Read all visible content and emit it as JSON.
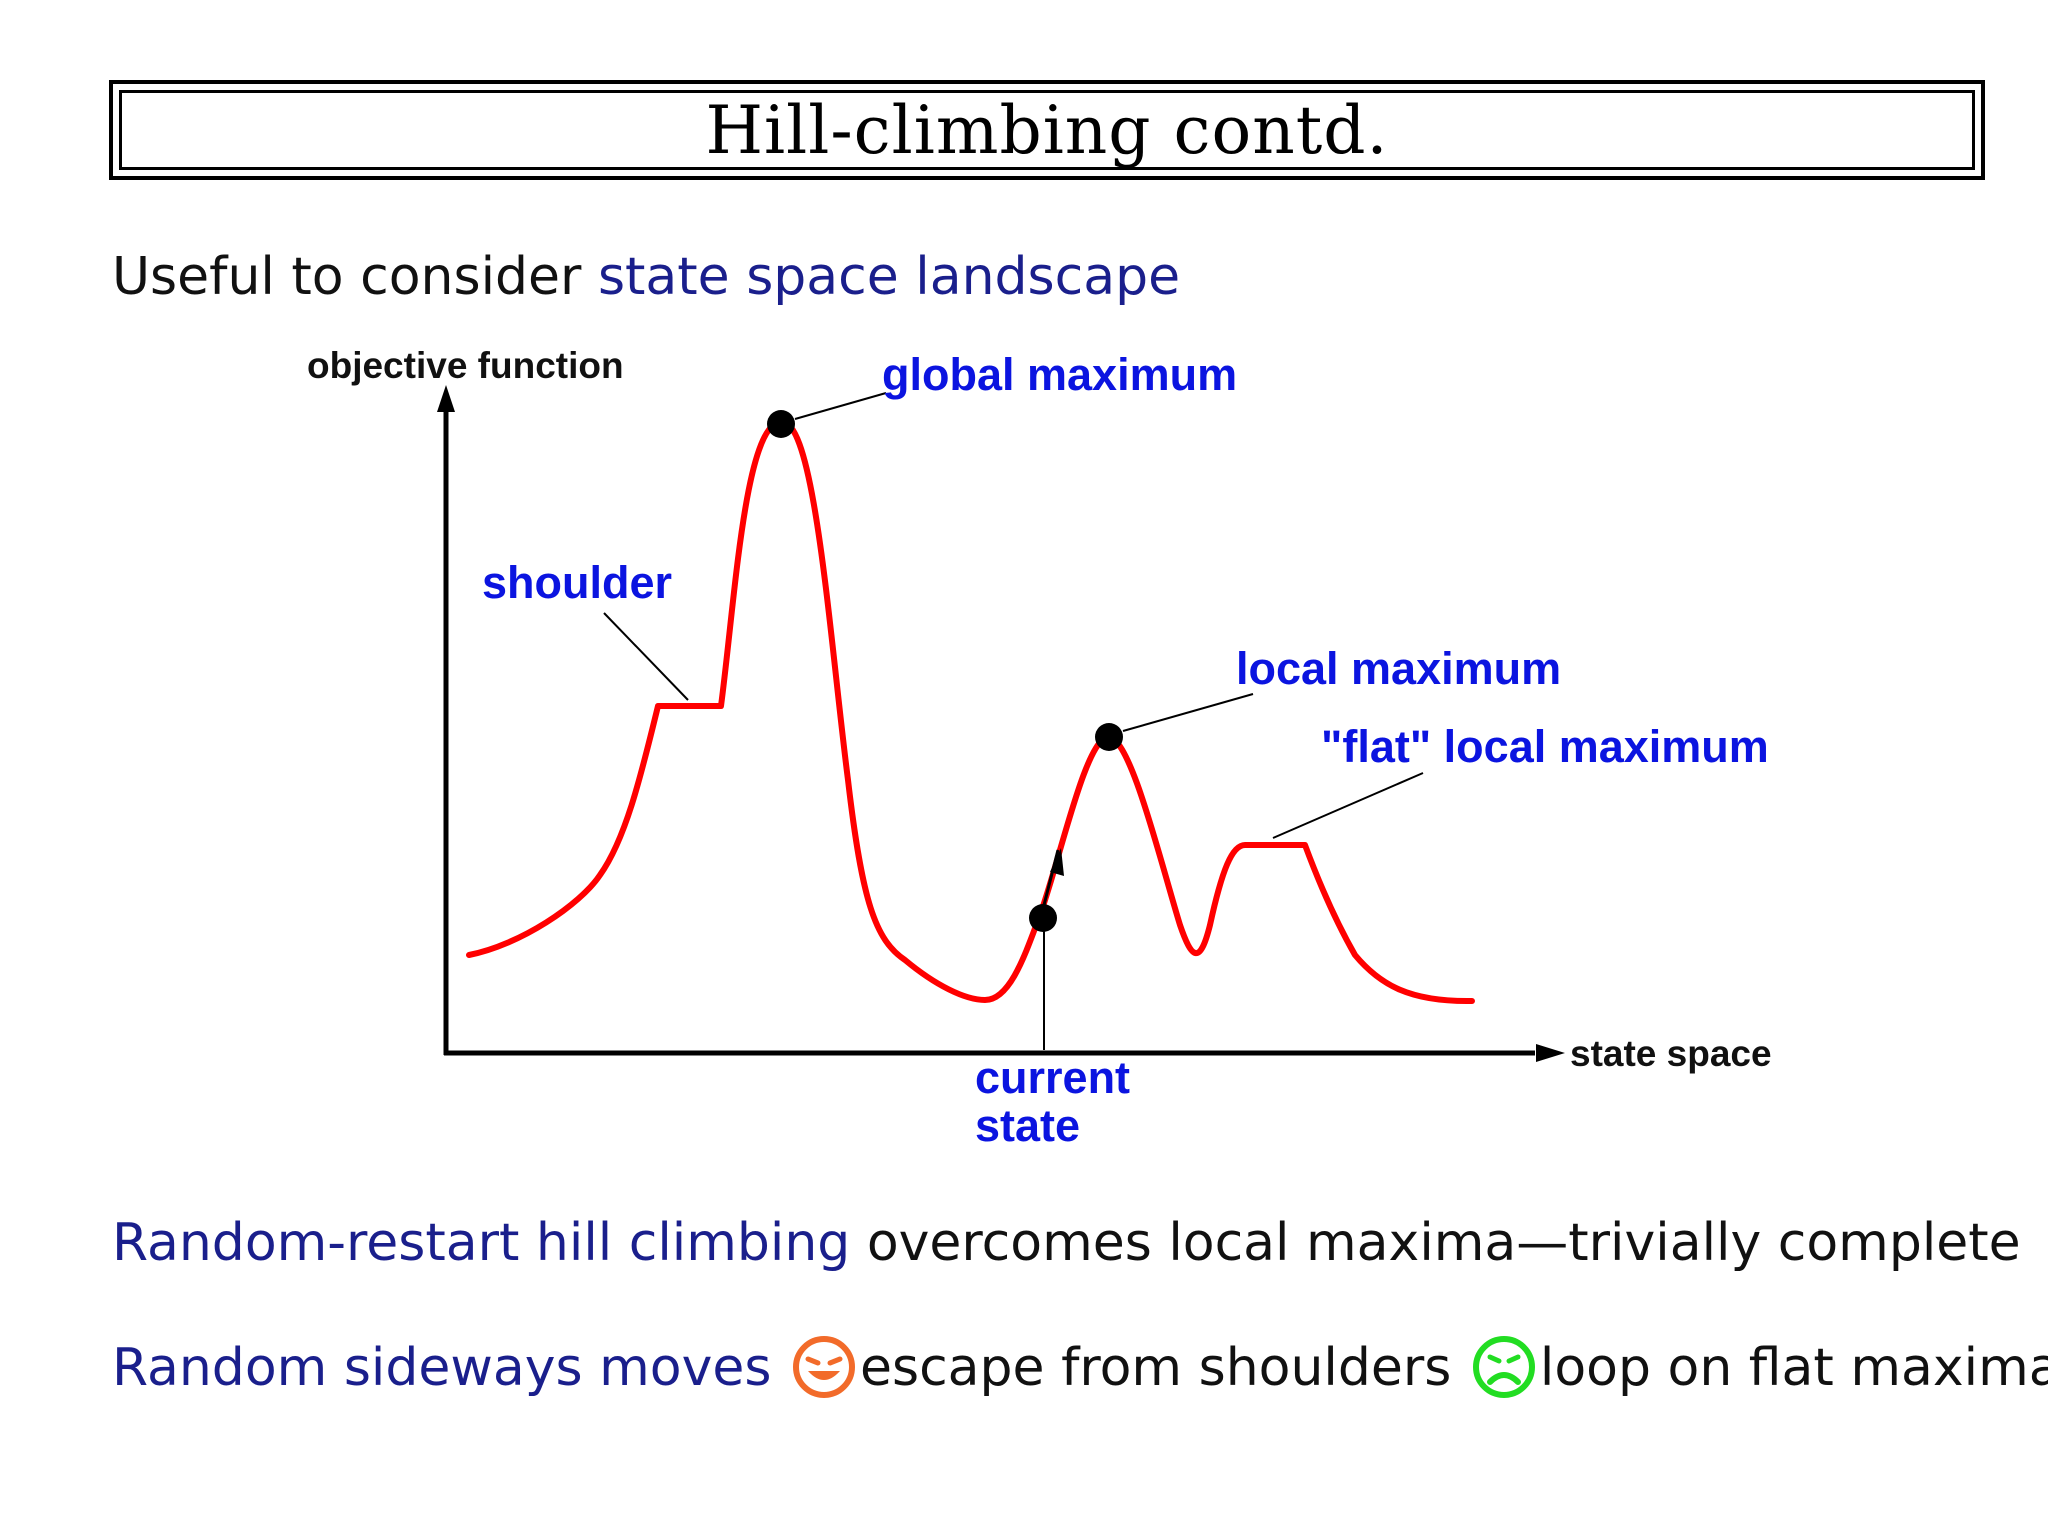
{
  "title": "Hill-climbing contd.",
  "intro": {
    "prefix": "Useful to consider ",
    "highlight": "state space landscape"
  },
  "diagram": {
    "y_axis_label": "objective function",
    "x_axis_label": "state space",
    "labels": {
      "global_maximum": "global maximum",
      "shoulder": "shoulder",
      "local_maximum": "local maximum",
      "flat_local_maximum": "\"flat\" local maximum",
      "current_state_line1": "current",
      "current_state_line2": "state"
    },
    "colors": {
      "curve": "#ff0000",
      "label": "#0b14e0",
      "axis": "#000000"
    }
  },
  "restart": {
    "highlight": "Random-restart hill climbing",
    "rest": " overcomes local maxima—trivially complete"
  },
  "sideways": {
    "highlight": "Random sideways moves ",
    "good_icon": "grinning-face-icon",
    "good_color": "#f26b2a",
    "good_text": "escape from shoulders ",
    "bad_icon": "frowning-face-icon",
    "bad_color": "#22dd22",
    "bad_text": "loop on flat maxima"
  }
}
